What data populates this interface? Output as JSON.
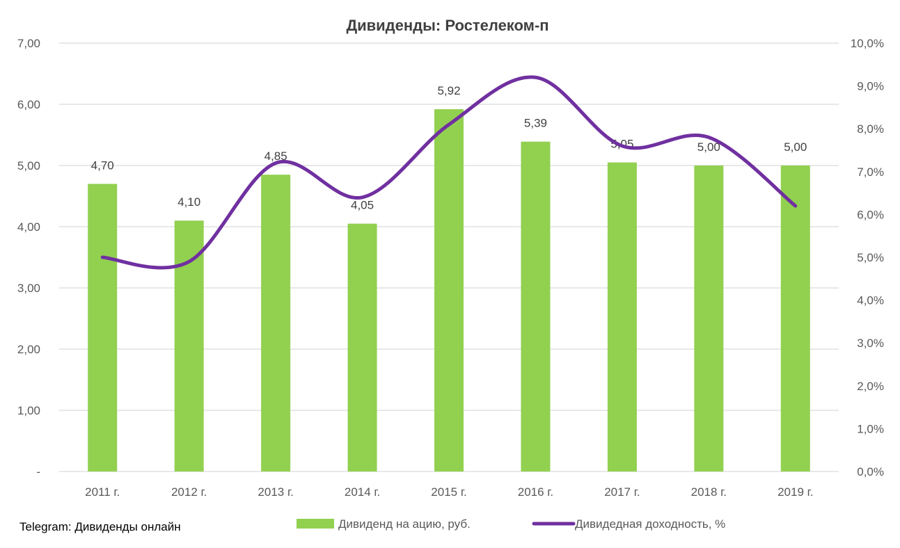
{
  "chart_data": {
    "type": "bar",
    "title": "Дивиденды: Ростелеком-п",
    "categories": [
      "2011 г.",
      "2012 г.",
      "2013 г.",
      "2014 г.",
      "2015 г.",
      "2016 г.",
      "2017 г.",
      "2018 г.",
      "2019 г."
    ],
    "series": [
      {
        "name": "Дивиденд на ацию, руб.",
        "type": "bar",
        "axis": "left",
        "color": "#92d050",
        "values": [
          4.7,
          4.1,
          4.85,
          4.05,
          5.92,
          5.39,
          5.05,
          5.0,
          5.0
        ],
        "labels": [
          "4,70",
          "4,10",
          "4,85",
          "4,05",
          "5,92",
          "5,39",
          "5,05",
          "5,00",
          "5,00"
        ]
      },
      {
        "name": "Дивидедная доходность, %",
        "type": "line",
        "smooth": true,
        "axis": "right",
        "color": "#7030a0",
        "values": [
          5.0,
          4.9,
          7.2,
          6.4,
          8.1,
          9.2,
          7.6,
          7.8,
          6.2
        ]
      }
    ],
    "y_left": {
      "min": 0,
      "max": 7,
      "step": 1,
      "tick_labels": [
        "-",
        "1,00",
        "2,00",
        "3,00",
        "4,00",
        "5,00",
        "6,00",
        "7,00"
      ]
    },
    "y_right": {
      "min": 0,
      "max": 10,
      "step": 1,
      "tick_labels": [
        "0,0%",
        "1,0%",
        "2,0%",
        "3,0%",
        "4,0%",
        "5,0%",
        "6,0%",
        "7,0%",
        "8,0%",
        "9,0%",
        "10,0%"
      ]
    },
    "grid": true,
    "legend_position": "bottom"
  },
  "footer_text": "Telegram: Дивиденды онлайн",
  "colors": {
    "grid": "#d9d9d9",
    "axis_text": "#595959"
  }
}
